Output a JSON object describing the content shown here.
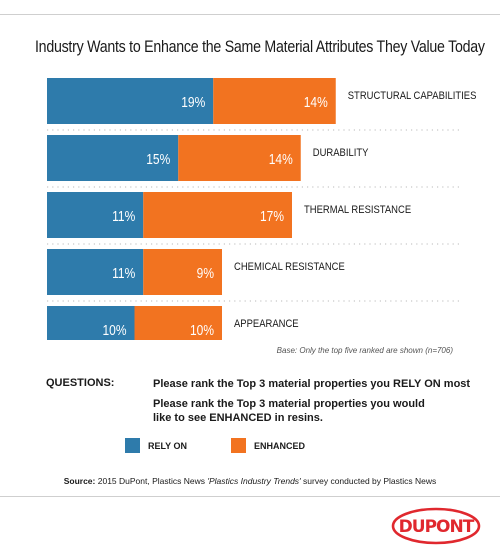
{
  "title": "Industry Wants to Enhance the Same Material Attributes They Value Today",
  "chart_data": {
    "type": "bar",
    "orientation": "horizontal",
    "stacked": true,
    "categories": [
      "STRUCTURAL CAPABILITIES",
      "DURABILITY",
      "THERMAL RESISTANCE",
      "CHEMICAL RESISTANCE",
      "APPEARANCE"
    ],
    "series": [
      {
        "name": "RELY ON",
        "values": [
          19,
          15,
          11,
          11,
          10
        ],
        "color": "#2e7bab"
      },
      {
        "name": "ENHANCED",
        "values": [
          14,
          14,
          17,
          9,
          10
        ],
        "color": "#f27320"
      }
    ],
    "value_suffix": "%"
  },
  "base_note": "Base: Only the top five ranked are shown (n=706)",
  "questions": {
    "label": "QUESTIONS:",
    "q1": "Please rank the Top 3 material properties you RELY ON most",
    "q2": "Please rank the Top 3 material properties you would like to see ENHANCED in resins."
  },
  "legend": {
    "rely_on": "RELY ON",
    "enhanced": "ENHANCED"
  },
  "source": {
    "label": "Source:",
    "text_before": "2015 DuPont, Plastics News ",
    "italic": "'Plastics Industry Trends'",
    "text_after": " survey conducted by Plastics News"
  },
  "logo_text": "DUPONT",
  "colors": {
    "rely_on": "#2e7bab",
    "enhanced": "#f27320",
    "logo_red": "#e0282e"
  }
}
